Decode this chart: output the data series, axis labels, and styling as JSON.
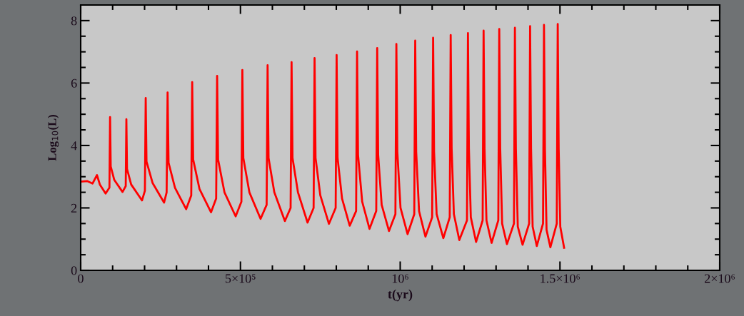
{
  "chart_data": {
    "type": "line",
    "xlabel": "t(yr)",
    "ylabel": "Log$_{10}$(L)",
    "x": [
      0,
      20000,
      37000,
      51000,
      60000,
      78000,
      90000,
      92000,
      94000,
      105000,
      131000,
      141000,
      143000,
      145000,
      158000,
      192000,
      201000,
      203500,
      206000,
      225000,
      261000,
      269000,
      272000,
      275000,
      295000,
      330000,
      346000,
      349000,
      352000,
      372000,
      408000,
      424000,
      427000,
      430000,
      450000,
      485000,
      503000,
      506000,
      509000,
      528000,
      563000,
      582000,
      585000,
      588000,
      606000,
      639000,
      657000,
      660000,
      663000,
      680000,
      710000,
      729000,
      732000,
      735000,
      750000,
      777000,
      798000,
      801000,
      804000,
      818000,
      842000,
      862000,
      865000,
      868000,
      881000,
      904000,
      925000,
      928000,
      931000,
      942000,
      965000,
      985000,
      988000,
      991000,
      1001000,
      1023000,
      1044000,
      1047000,
      1050000,
      1059000,
      1079000,
      1100000,
      1103000,
      1106000,
      1114000,
      1135000,
      1155000,
      1158000,
      1161000,
      1168000,
      1185000,
      1209000,
      1212000,
      1215000,
      1221000,
      1237500,
      1258000,
      1261000,
      1264000,
      1270000,
      1286000,
      1307000,
      1310000,
      1313000,
      1319000,
      1334000,
      1356000,
      1359000,
      1362000,
      1368000,
      1383000,
      1403500,
      1406500,
      1409500,
      1414500,
      1427500,
      1447000,
      1450000,
      1453000,
      1458000,
      1470000,
      1490000,
      1493000,
      1496000,
      1501000,
      1513000
    ],
    "series": [
      {
        "color": "#ff0000",
        "values": [
          2.84,
          2.86,
          2.78,
          3.05,
          2.75,
          2.46,
          2.65,
          4.91,
          3.33,
          2.9,
          2.51,
          2.7,
          4.84,
          3.25,
          2.75,
          2.24,
          2.55,
          5.52,
          3.49,
          2.8,
          2.17,
          2.5,
          5.7,
          3.45,
          2.65,
          1.96,
          2.4,
          6.03,
          3.55,
          2.6,
          1.86,
          2.3,
          6.23,
          3.55,
          2.5,
          1.73,
          2.2,
          6.42,
          3.6,
          2.5,
          1.65,
          2.1,
          6.57,
          3.6,
          2.5,
          1.58,
          2.0,
          6.67,
          3.6,
          2.5,
          1.53,
          2.0,
          6.8,
          3.6,
          2.4,
          1.49,
          2.0,
          6.9,
          3.6,
          2.3,
          1.43,
          1.9,
          7.01,
          3.7,
          2.2,
          1.33,
          1.9,
          7.12,
          3.7,
          2.1,
          1.26,
          1.8,
          7.25,
          3.8,
          2.0,
          1.16,
          1.8,
          7.36,
          3.8,
          1.9,
          1.08,
          1.7,
          7.45,
          3.8,
          1.8,
          1.03,
          1.7,
          7.54,
          3.9,
          1.8,
          0.97,
          1.6,
          7.6,
          3.9,
          1.7,
          0.91,
          1.6,
          7.68,
          3.9,
          1.6,
          0.88,
          1.6,
          7.73,
          3.9,
          1.5,
          0.84,
          1.5,
          7.77,
          3.9,
          1.4,
          0.82,
          1.5,
          7.82,
          3.9,
          1.4,
          0.78,
          1.5,
          7.86,
          3.9,
          1.3,
          0.74,
          1.5,
          7.89,
          3.9,
          1.4,
          0.72
        ]
      }
    ],
    "xlim": [
      0,
      2000000
    ],
    "ylim": [
      0,
      8.5
    ],
    "xticks": [
      {
        "value": 0,
        "label": "0"
      },
      {
        "value": 100000,
        "label": null
      },
      {
        "value": 200000,
        "label": null
      },
      {
        "value": 300000,
        "label": null
      },
      {
        "value": 400000,
        "label": null
      },
      {
        "value": 500000,
        "label": "5×10⁵"
      },
      {
        "value": 600000,
        "label": null
      },
      {
        "value": 700000,
        "label": null
      },
      {
        "value": 800000,
        "label": null
      },
      {
        "value": 900000,
        "label": null
      },
      {
        "value": 1000000,
        "label": "10⁶"
      },
      {
        "value": 1100000,
        "label": null
      },
      {
        "value": 1200000,
        "label": null
      },
      {
        "value": 1300000,
        "label": null
      },
      {
        "value": 1400000,
        "label": null
      },
      {
        "value": 1500000,
        "label": "1.5×10⁶"
      },
      {
        "value": 1600000,
        "label": null
      },
      {
        "value": 1700000,
        "label": null
      },
      {
        "value": 1800000,
        "label": null
      },
      {
        "value": 1900000,
        "label": null
      },
      {
        "value": 2000000,
        "label": "2×10⁶"
      }
    ],
    "yticks": [
      0,
      {
        "value": 0.5,
        "label": null
      },
      {
        "value": 1,
        "label": null
      },
      {
        "value": 1.5,
        "label": null
      },
      2,
      {
        "value": 2.5,
        "label": null
      },
      {
        "value": 3,
        "label": null
      },
      {
        "value": 3.5,
        "label": null
      },
      4,
      {
        "value": 4.5,
        "label": null
      },
      {
        "value": 5,
        "label": null
      },
      {
        "value": 5.5,
        "label": null
      },
      6,
      {
        "value": 6.5,
        "label": null
      },
      {
        "value": 7,
        "label": null
      },
      {
        "value": 7.5,
        "label": null
      },
      8
    ],
    "grid": false,
    "legend": false,
    "marker": "none",
    "line_style": "solid"
  }
}
